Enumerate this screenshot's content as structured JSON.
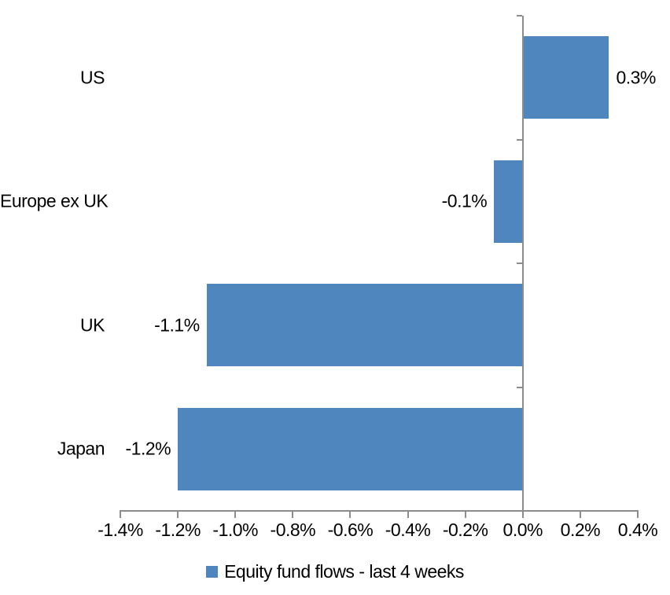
{
  "chart_data": {
    "type": "bar",
    "orientation": "horizontal",
    "title": "",
    "xlabel": "",
    "ylabel": "",
    "categories": [
      "US",
      "Europe ex UK",
      "UK",
      "Japan"
    ],
    "values": [
      0.3,
      -0.1,
      -1.1,
      -1.2
    ],
    "data_labels": [
      "0.3%",
      "-0.1%",
      "-1.1%",
      "-1.2%"
    ],
    "xlim": [
      -1.4,
      0.4
    ],
    "x_ticks": [
      -1.4,
      -1.2,
      -1.0,
      -0.8,
      -0.6,
      -0.4,
      -0.2,
      0.0,
      0.2,
      0.4
    ],
    "x_tick_labels": [
      "-1.4%",
      "-1.2%",
      "-1.0%",
      "-0.8%",
      "-0.6%",
      "-0.4%",
      "-0.2%",
      "0.0%",
      "0.2%",
      "0.4%"
    ],
    "grid": false,
    "legend_position": "bottom",
    "legend": [
      {
        "label": "Equity fund flows - last 4 weeks",
        "color": "#4E86BD"
      }
    ],
    "bar_color": "#4E86BD",
    "axis_color": "#8C8C8C",
    "text_color": "#000000"
  }
}
